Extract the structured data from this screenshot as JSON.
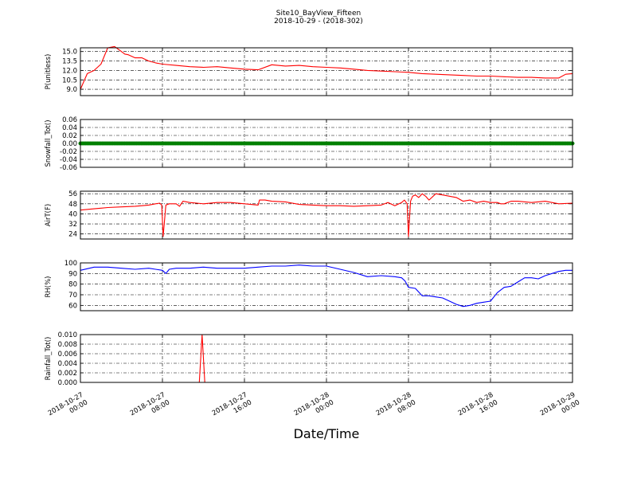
{
  "figure": {
    "title": "Site10_BayView_Fifteen",
    "subtitle": "2018-10-29 - (2018-302)",
    "xlabel": "Date/Time"
  },
  "colors": {
    "red": "#ff0000",
    "green": "#008000",
    "blue": "#0000ff",
    "grid": "#000000"
  },
  "chart_data": [
    {
      "type": "line",
      "ylabel": "P(unitless)",
      "color": "#ff0000",
      "ylim": [
        8.0,
        15.6
      ],
      "yticks": [
        "9.0",
        "10.5",
        "12.0",
        "13.5",
        "15.0"
      ],
      "x_hours": [
        0,
        1,
        2,
        3,
        4,
        5,
        6,
        6.5,
        7,
        8,
        9,
        10,
        11,
        12,
        14,
        16,
        18,
        20,
        22,
        24,
        26,
        28,
        30,
        32,
        34,
        36,
        38,
        40,
        42,
        44,
        46,
        48,
        50,
        52,
        54,
        56,
        58,
        60,
        62,
        64,
        66,
        68,
        70,
        71,
        72
      ],
      "values": [
        9.0,
        11.5,
        12.0,
        13.0,
        15.6,
        15.8,
        15.0,
        14.6,
        14.5,
        14.0,
        14.0,
        13.5,
        13.2,
        13.0,
        12.8,
        12.6,
        12.5,
        12.6,
        12.4,
        12.2,
        12.1,
        12.9,
        12.7,
        12.8,
        12.6,
        12.5,
        12.4,
        12.2,
        12.0,
        11.9,
        11.8,
        11.7,
        11.5,
        11.4,
        11.3,
        11.2,
        11.1,
        11.1,
        11.0,
        10.9,
        10.9,
        10.8,
        10.8,
        11.4,
        11.5
      ],
      "grid": true
    },
    {
      "type": "scatter",
      "ylabel": "Snowfall_Tot()",
      "color": "#008000",
      "ylim": [
        -0.06,
        0.06
      ],
      "yticks": [
        "-0.06",
        "-0.04",
        "-0.02",
        "0.00",
        "0.02",
        "0.04",
        "0.06"
      ],
      "constant_value": 0.0,
      "grid": true
    },
    {
      "type": "line",
      "ylabel": "AirT(F)",
      "color": "#ff0000",
      "ylim": [
        20,
        58
      ],
      "yticks": [
        "24",
        "32",
        "40",
        "48",
        "56"
      ],
      "x_hours": [
        0,
        2,
        4,
        6,
        8,
        10,
        11,
        11.6,
        11.9,
        12.1,
        12.5,
        13,
        14,
        14.5,
        15,
        16,
        18,
        20,
        22,
        24,
        26,
        26.2,
        27,
        28,
        30,
        32,
        34,
        36,
        38,
        40,
        42,
        44,
        45,
        46,
        47,
        47.4,
        47.8,
        48,
        48.3,
        48.6,
        49,
        49.5,
        50,
        50.5,
        51,
        52,
        53,
        54,
        55,
        56,
        57,
        58,
        59,
        60,
        61,
        61.5,
        62,
        63,
        64,
        66,
        68,
        70,
        72
      ],
      "values": [
        43,
        44,
        45,
        45.5,
        46,
        47,
        48,
        48.5,
        47,
        22,
        47,
        48,
        48,
        46,
        50,
        49,
        48,
        49,
        49,
        48,
        47,
        51,
        51,
        50,
        49.5,
        47.5,
        47,
        46.5,
        46.5,
        46,
        46.5,
        47,
        49,
        46.5,
        49,
        51,
        48,
        22,
        50,
        54,
        55,
        53,
        56,
        54,
        51,
        56,
        55,
        54,
        53,
        50,
        51,
        49,
        50,
        49,
        49,
        48,
        48,
        50,
        50,
        49,
        50,
        48,
        48.5
      ],
      "grid": true
    },
    {
      "type": "line",
      "ylabel": "RH(%)",
      "color": "#0000ff",
      "ylim": [
        55,
        100
      ],
      "yticks": [
        "60",
        "70",
        "80",
        "90",
        "100"
      ],
      "x_hours": [
        0,
        2,
        4,
        6,
        8,
        10,
        11,
        12,
        12.5,
        13,
        14,
        16,
        18,
        20,
        22,
        24,
        26,
        28,
        30,
        32,
        34,
        36,
        38,
        40,
        42,
        44,
        46,
        47,
        47.5,
        48,
        49,
        50,
        51,
        52,
        53,
        54,
        55,
        56,
        57,
        58,
        59,
        60,
        61,
        62,
        63,
        64,
        65,
        66,
        67,
        68,
        69,
        70,
        71,
        72
      ],
      "values": [
        93,
        96,
        96,
        95,
        94,
        95,
        94,
        93,
        90,
        94,
        95,
        95,
        96,
        95,
        95,
        95,
        96,
        97,
        97,
        98,
        97,
        97,
        94,
        91,
        87,
        88,
        87,
        86,
        83,
        77,
        76,
        69,
        69,
        68,
        67,
        64,
        61,
        59,
        60,
        62,
        63,
        64,
        72,
        77,
        78,
        82,
        86,
        86,
        85,
        88,
        90,
        92,
        93,
        93
      ],
      "grid": true
    },
    {
      "type": "line",
      "ylabel": "Rainfall_Tot()",
      "color": "#ff0000",
      "ylim": [
        0.0,
        0.01
      ],
      "yticks": [
        "0.000",
        "0.002",
        "0.004",
        "0.006",
        "0.008",
        "0.010"
      ],
      "x_hours": [
        0,
        17,
        17.4,
        17.8,
        18.2,
        72
      ],
      "values": [
        0,
        0,
        0,
        0.01,
        0,
        0
      ],
      "grid": true
    }
  ],
  "x_axis": {
    "xlim_hours": [
      0,
      72
    ],
    "ticks": [
      {
        "hour": 0,
        "line1": "2018-10-27",
        "line2": "00:00"
      },
      {
        "hour": 12,
        "line1": "2018-10-27",
        "line2": "08:00"
      },
      {
        "hour": 24,
        "line1": "2018-10-27",
        "line2": "16:00"
      },
      {
        "hour": 36,
        "line1": "2018-10-28",
        "line2": "00:00"
      },
      {
        "hour": 48,
        "line1": "2018-10-28",
        "line2": "08:00"
      },
      {
        "hour": 60,
        "line1": "2018-10-28",
        "line2": "16:00"
      },
      {
        "hour": 72,
        "line1": "2018-10-29",
        "line2": "00:00"
      }
    ]
  }
}
